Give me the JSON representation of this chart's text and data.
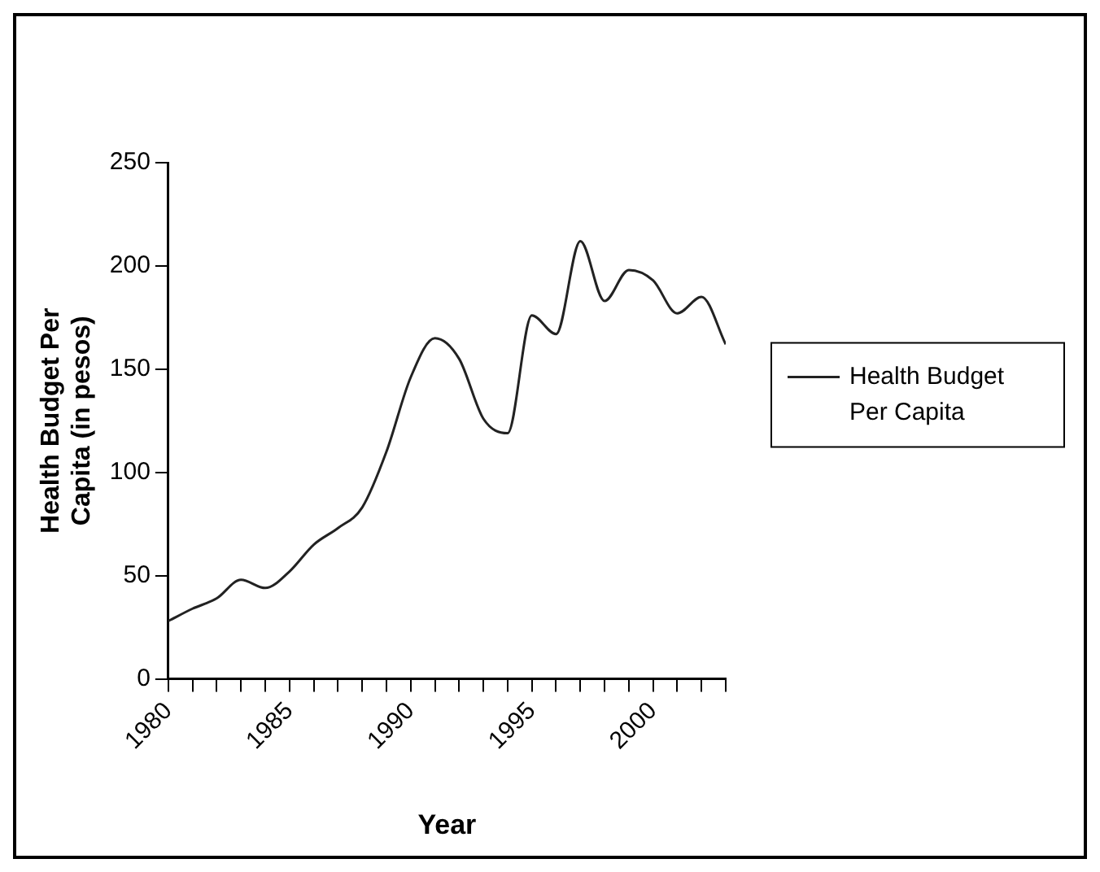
{
  "chart_data": {
    "type": "line",
    "xlabel": "Year",
    "ylabel": "Health Budget Per Capita (in pesos)",
    "x": [
      1980,
      1981,
      1982,
      1983,
      1984,
      1985,
      1986,
      1987,
      1988,
      1989,
      1990,
      1991,
      1992,
      1993,
      1994,
      1995,
      1996,
      1997,
      1998,
      1999,
      2000,
      2001,
      2002,
      2003
    ],
    "series": [
      {
        "name": "Health Budget Per Capita",
        "color": "#222222",
        "values": [
          28,
          34,
          39,
          48,
          44,
          52,
          65,
          73,
          83,
          110,
          146,
          165,
          155,
          126,
          119,
          176,
          167,
          212,
          183,
          198,
          193,
          177,
          185,
          162
        ]
      }
    ],
    "xlim": [
      1980,
      2003
    ],
    "xticks": [
      1980,
      {
        "value": 1981,
        "label": null
      },
      {
        "value": 1982,
        "label": null
      },
      {
        "value": 1983,
        "label": null
      },
      {
        "value": 1984,
        "label": null
      },
      1985,
      {
        "value": 1986,
        "label": null
      },
      {
        "value": 1987,
        "label": null
      },
      {
        "value": 1988,
        "label": null
      },
      {
        "value": 1989,
        "label": null
      },
      1990,
      {
        "value": 1991,
        "label": null
      },
      {
        "value": 1992,
        "label": null
      },
      {
        "value": 1993,
        "label": null
      },
      {
        "value": 1994,
        "label": null
      },
      1995,
      {
        "value": 1996,
        "label": null
      },
      {
        "value": 1997,
        "label": null
      },
      {
        "value": 1998,
        "label": null
      },
      {
        "value": 1999,
        "label": null
      },
      2000,
      {
        "value": 2001,
        "label": null
      },
      {
        "value": 2002,
        "label": null
      },
      {
        "value": 2003,
        "label": null
      }
    ],
    "ylim": [
      0,
      250
    ],
    "yticks": [
      0,
      50,
      100,
      150,
      200,
      250
    ],
    "grid": false,
    "legend": "right",
    "marker": "none",
    "line_style": "solid"
  }
}
